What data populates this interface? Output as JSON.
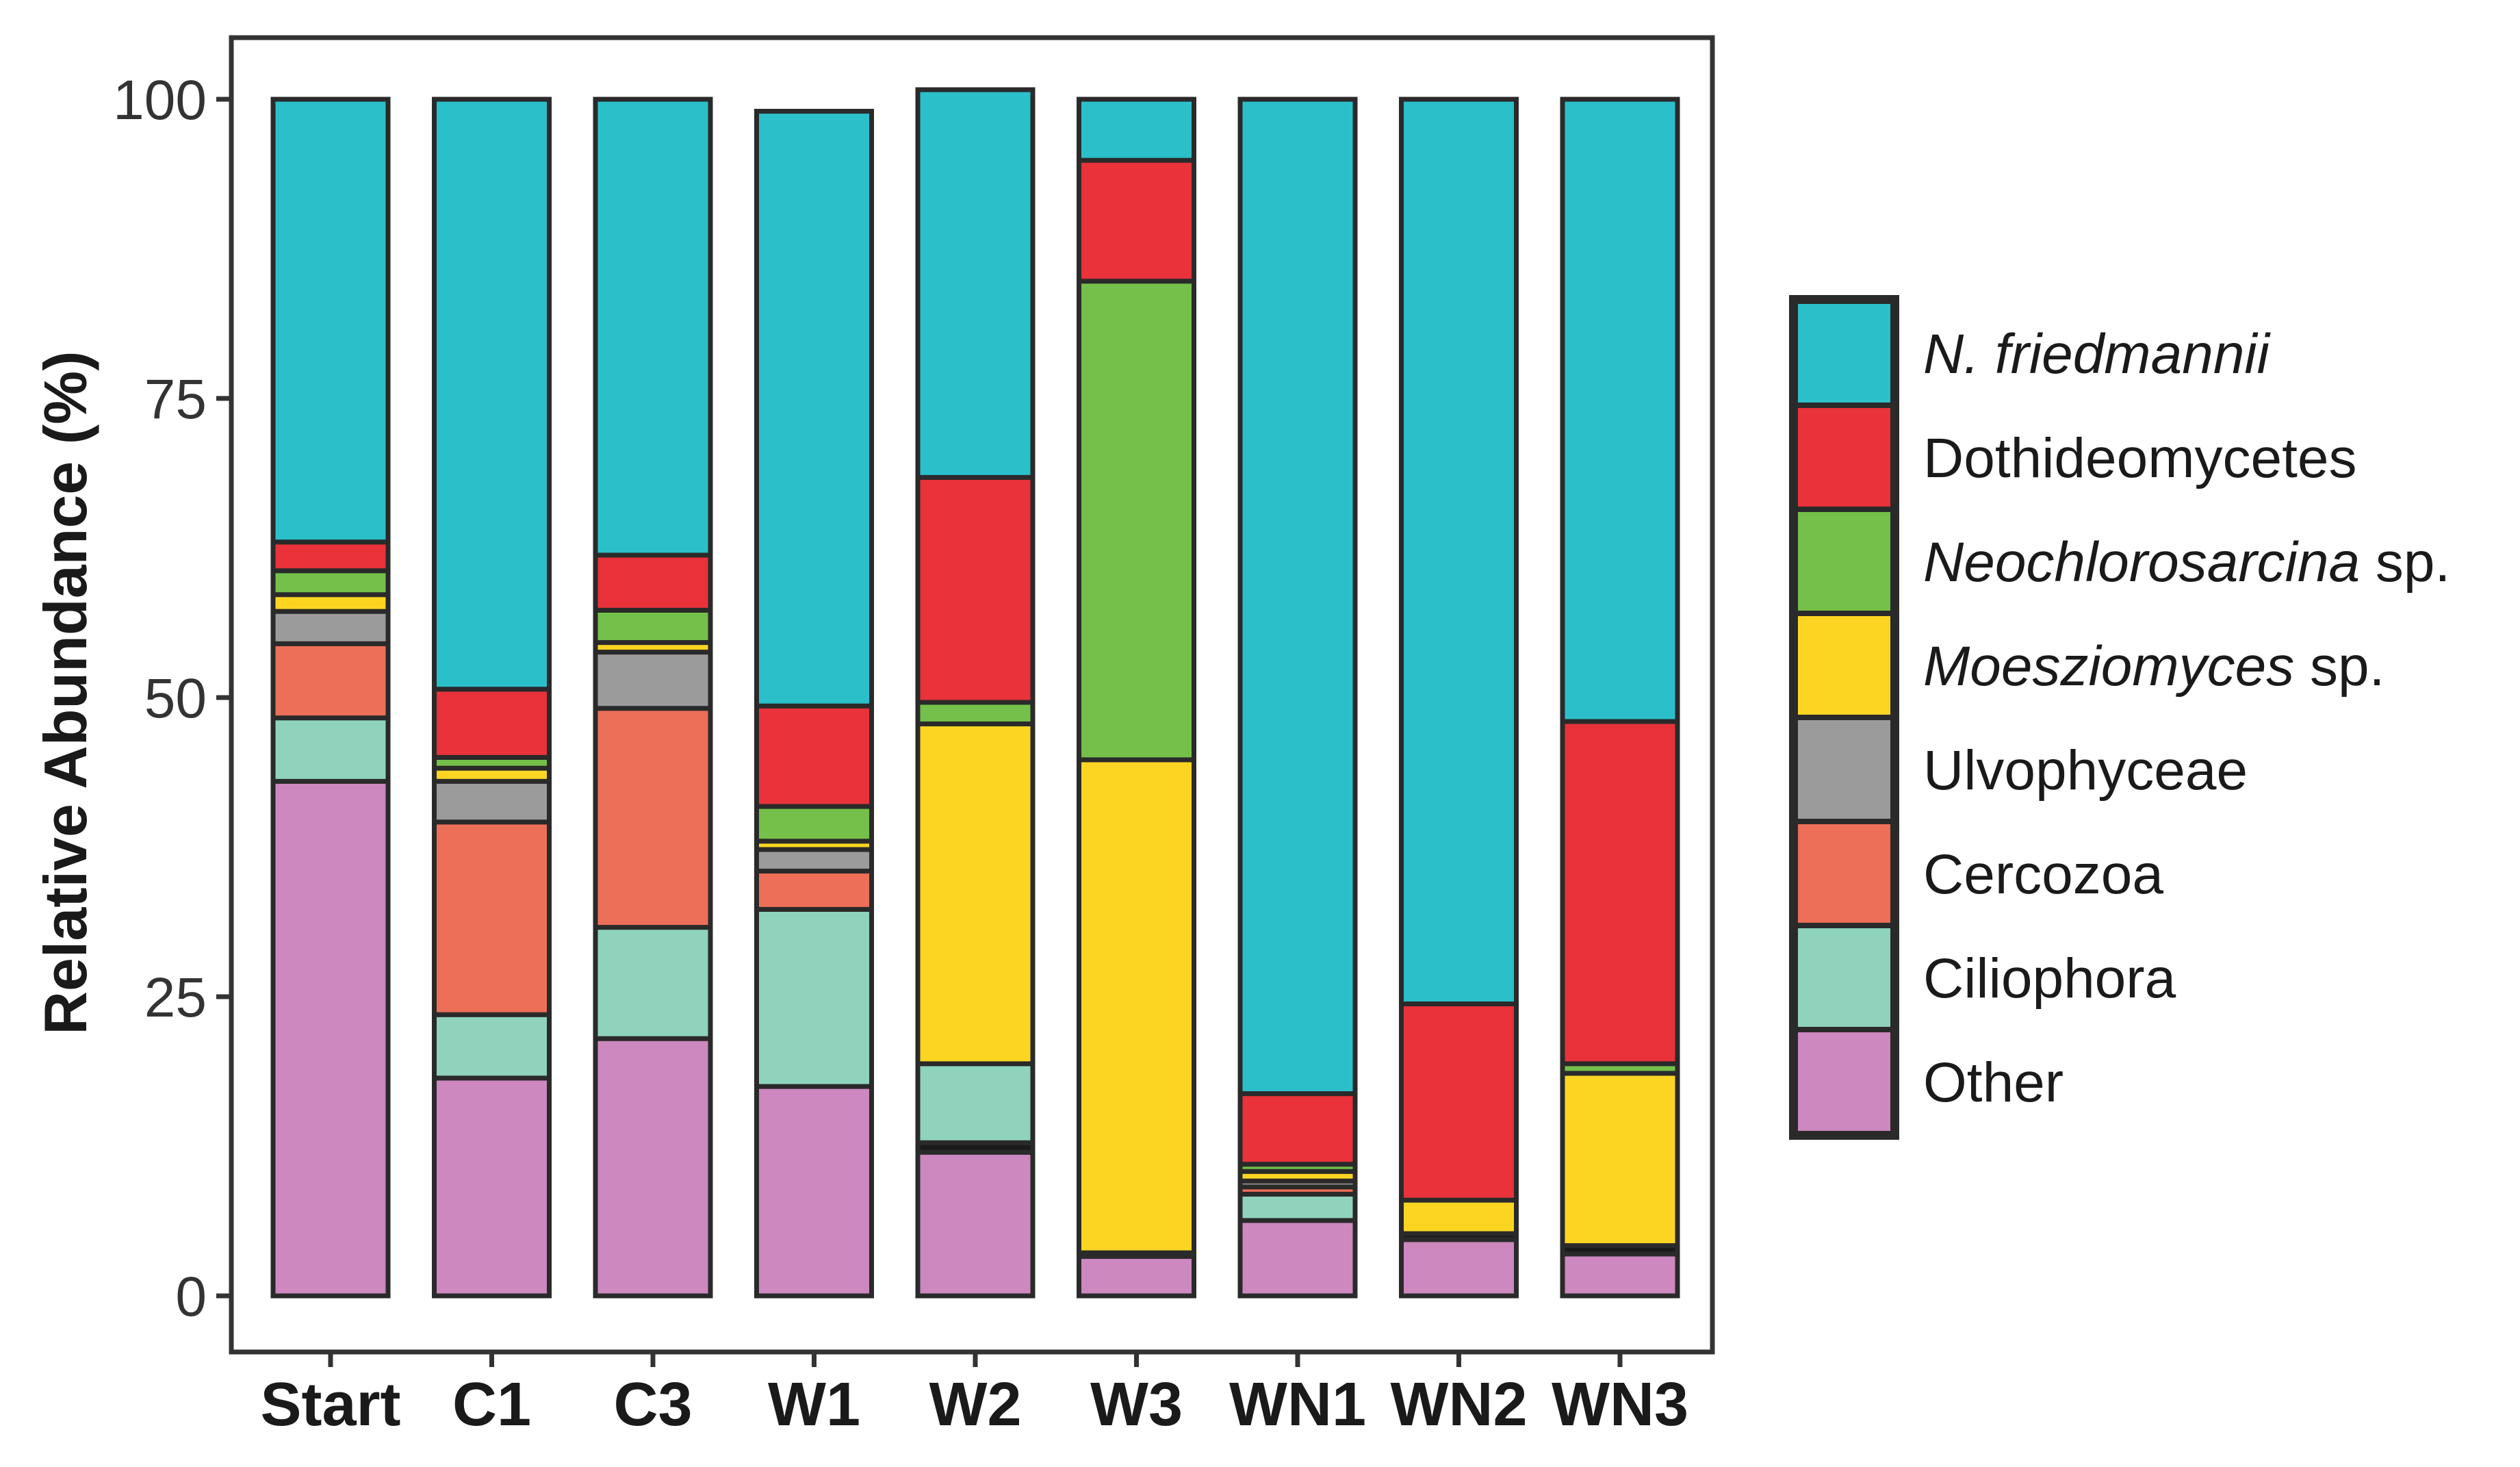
{
  "chart_data": {
    "type": "bar",
    "stacked": true,
    "title": "",
    "xlabel": "",
    "ylabel": "Relative Abundance (%)",
    "ylim": [
      0,
      100
    ],
    "yticks": [
      "0",
      "25",
      "50",
      "75",
      "100"
    ],
    "grid": false,
    "legend_position": "right",
    "categories": [
      "Start",
      "C1",
      "C3",
      "W1",
      "W2",
      "W3",
      "WN1",
      "WN2",
      "WN3"
    ],
    "series": [
      {
        "name": "Other",
        "legend": [
          "Other",
          ""
        ],
        "italic": false,
        "color": "#cc88bf",
        "values": [
          43,
          18.2,
          21.5,
          17.5,
          12,
          3.3,
          6.3,
          4.7,
          3.5
        ]
      },
      {
        "name": "Black segment",
        "legend": null,
        "color": "#1a1a1a",
        "values": [
          0,
          0,
          0,
          0,
          0.8,
          0.3,
          0,
          0.5,
          0.7
        ]
      },
      {
        "name": "Ciliophora",
        "legend": [
          "Ciliophora",
          ""
        ],
        "italic": false,
        "color": "#8fd3bc",
        "values": [
          5.3,
          5.3,
          9.3,
          14.8,
          6.6,
          0,
          2.2,
          0,
          0
        ]
      },
      {
        "name": "Cercozoa",
        "legend": [
          "Cercozoa",
          ""
        ],
        "italic": false,
        "color": "#ed6f58",
        "values": [
          6.2,
          16.1,
          18.3,
          3.2,
          0,
          0,
          0.6,
          0,
          0
        ]
      },
      {
        "name": "Ulvophyceae",
        "legend": [
          "Ulvophyceae",
          ""
        ],
        "italic": false,
        "color": "#9b9b9b",
        "values": [
          2.7,
          3.4,
          4.7,
          1.8,
          0,
          0,
          0.5,
          0,
          0
        ]
      },
      {
        "name": "Moesziomyces sp.",
        "legend": [
          "Moesziomyces",
          " sp."
        ],
        "italic": true,
        "color": "#fcd522",
        "values": [
          1.4,
          1.1,
          0.8,
          0.7,
          28.4,
          41.2,
          0.8,
          2.8,
          14.4
        ]
      },
      {
        "name": "Neochlorosarcina sp.",
        "legend": [
          "Neochlorosarcina",
          " sp."
        ],
        "italic": true,
        "color": "#74c04a",
        "values": [
          2,
          0.9,
          2.7,
          2.9,
          1.8,
          40,
          0.6,
          0,
          0.8
        ]
      },
      {
        "name": "Dothideomycetes",
        "legend": [
          "Dothideomycetes",
          ""
        ],
        "italic": false,
        "color": "#e9323a",
        "values": [
          2.4,
          5.7,
          4.6,
          8.4,
          18.8,
          10.1,
          5.9,
          16.4,
          28.6
        ]
      },
      {
        "name": "N. friedmannii",
        "legend": [
          "N. friedmannii",
          ""
        ],
        "italic": true,
        "color": "#2bbfca",
        "values": [
          37,
          49.3,
          38.1,
          49.7,
          32.4,
          5.1,
          83.1,
          75.6,
          52
        ]
      }
    ],
    "legend_order": [
      "N. friedmannii",
      "Dothideomycetes",
      "Neochlorosarcina sp.",
      "Moesziomyces sp.",
      "Ulvophyceae",
      "Cercozoa",
      "Ciliophora",
      "Other"
    ]
  }
}
